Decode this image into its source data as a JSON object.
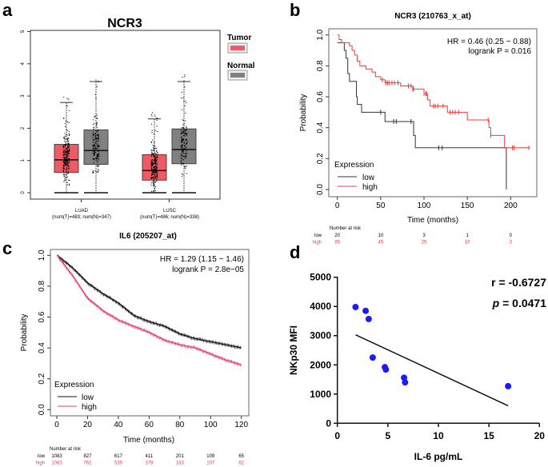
{
  "panel_labels": {
    "a": "a",
    "b": "b",
    "c": "c",
    "d": "d"
  },
  "colors": {
    "tumor": "#f05a64",
    "normal": "#808080",
    "km_low_b": "#333333",
    "km_high_b": "#f03c3c",
    "km_low_c": "#111111",
    "km_high_c": "#e0406e",
    "scatter": "#1a1aff"
  },
  "chart_data": [
    {
      "id": "a",
      "type": "box",
      "title": "NCR3",
      "ylim": [
        0,
        5
      ],
      "yticks": [
        "0",
        "1",
        "2",
        "3",
        "4",
        "5"
      ],
      "legend": [
        {
          "name": "Tumor"
        },
        {
          "name": "Normal"
        }
      ],
      "legend_placement": "right",
      "groups": [
        {
          "label": "LUAD",
          "sublabel": "(num(T)=483; num(N)=347)",
          "tumor": {
            "n": 483,
            "min": 0,
            "q1": 0.63,
            "median": 1.02,
            "q3": 1.5,
            "max": 2.8
          },
          "normal": {
            "n": 347,
            "min": 0,
            "q1": 0.88,
            "median": 1.31,
            "q3": 1.95,
            "max": 3.45
          }
        },
        {
          "label": "LUSC",
          "sublabel": "(num(T)=486; num(N)=338)",
          "tumor": {
            "n": 486,
            "min": 0,
            "q1": 0.39,
            "median": 0.69,
            "q3": 1.18,
            "max": 2.29
          },
          "normal": {
            "n": 338,
            "min": 0,
            "q1": 0.9,
            "median": 1.34,
            "q3": 1.98,
            "max": 3.45
          }
        }
      ]
    },
    {
      "id": "b",
      "type": "line",
      "title": "NCR3 (210763_x_at)",
      "xlabel": "Time (months)",
      "ylabel": "Probability",
      "xlim": [
        0,
        220
      ],
      "ylim": [
        0,
        1
      ],
      "xticks": [
        "0",
        "50",
        "100",
        "150",
        "200"
      ],
      "yticks": [
        "0.0",
        "0.2",
        "0.4",
        "0.6",
        "0.8",
        "1.0"
      ],
      "annotation": [
        "HR = 0.46 (0.25 − 0.88)",
        "logrank P = 0.016"
      ],
      "legend_title": "Expression",
      "legend_placement": "bottom-left",
      "series": [
        {
          "name": "low",
          "steps": [
            [
              0,
              0.95
            ],
            [
              8,
              0.9
            ],
            [
              10,
              0.85
            ],
            [
              12,
              0.75
            ],
            [
              14,
              0.7
            ],
            [
              22,
              0.6
            ],
            [
              23,
              0.55
            ],
            [
              28,
              0.5
            ],
            [
              55,
              0.44
            ],
            [
              88,
              0.35
            ],
            [
              90,
              0.27
            ],
            [
              195,
              0.0
            ]
          ],
          "censored": [
            50,
            65,
            68,
            85,
            117,
            121
          ]
        },
        {
          "name": "high",
          "steps": [
            [
              0,
              1.0
            ],
            [
              2,
              0.97
            ],
            [
              5,
              0.95
            ],
            [
              14,
              0.93
            ],
            [
              17,
              0.9
            ],
            [
              20,
              0.87
            ],
            [
              23,
              0.83
            ],
            [
              26,
              0.8
            ],
            [
              33,
              0.78
            ],
            [
              40,
              0.76
            ],
            [
              44,
              0.73
            ],
            [
              50,
              0.71
            ],
            [
              55,
              0.69
            ],
            [
              73,
              0.67
            ],
            [
              87,
              0.65
            ],
            [
              100,
              0.62
            ],
            [
              104,
              0.58
            ],
            [
              107,
              0.54
            ],
            [
              127,
              0.5
            ],
            [
              150,
              0.45
            ],
            [
              175,
              0.4
            ],
            [
              177,
              0.35
            ],
            [
              193,
              0.27
            ],
            [
              222,
              0.27
            ]
          ],
          "censored": [
            52,
            56,
            58,
            60,
            63,
            66,
            70,
            82,
            85,
            87,
            88,
            100,
            102,
            103,
            111,
            113,
            116,
            122,
            130,
            133,
            136,
            140,
            174,
            177,
            202,
            204,
            221
          ]
        }
      ],
      "risk_table": {
        "title": "Number at risk",
        "times": [
          "0",
          "50",
          "100",
          "150",
          "200"
        ],
        "rows": [
          {
            "name": "low",
            "values": [
              "20",
              "10",
              "3",
              "1",
              "0"
            ]
          },
          {
            "name": "high",
            "values": [
              "65",
              "45",
              "25",
              "10",
              "3"
            ]
          }
        ]
      }
    },
    {
      "id": "c",
      "type": "line",
      "title": "IL6 (205207_at)",
      "xlabel": "Time (months)",
      "ylabel": "Probability",
      "xlim": [
        0,
        120
      ],
      "ylim": [
        0,
        1
      ],
      "xticks": [
        "0",
        "20",
        "40",
        "60",
        "80",
        "100",
        "120"
      ],
      "yticks": [
        "0.0",
        "0.2",
        "0.4",
        "0.6",
        "0.8",
        "1.0"
      ],
      "annotation": [
        "HR = 1.29 (1.15 − 1.46)",
        "logrank P = 2.8e−05"
      ],
      "legend_title": "Expression",
      "legend_placement": "bottom-left",
      "series": [
        {
          "name": "low",
          "points": [
            [
              0,
              1.0
            ],
            [
              10,
              0.92
            ],
            [
              20,
              0.82
            ],
            [
              30,
              0.75
            ],
            [
              40,
              0.69
            ],
            [
              50,
              0.61
            ],
            [
              60,
              0.57
            ],
            [
              70,
              0.54
            ],
            [
              80,
              0.49
            ],
            [
              90,
              0.46
            ],
            [
              100,
              0.44
            ],
            [
              110,
              0.42
            ],
            [
              120,
              0.4
            ]
          ]
        },
        {
          "name": "high",
          "points": [
            [
              0,
              1.0
            ],
            [
              10,
              0.87
            ],
            [
              20,
              0.72
            ],
            [
              30,
              0.64
            ],
            [
              40,
              0.58
            ],
            [
              50,
              0.54
            ],
            [
              60,
              0.5
            ],
            [
              70,
              0.45
            ],
            [
              80,
              0.42
            ],
            [
              90,
              0.4
            ],
            [
              100,
              0.36
            ],
            [
              110,
              0.32
            ],
            [
              120,
              0.29
            ]
          ]
        }
      ],
      "risk_table": {
        "title": "Number at risk",
        "times": [
          "0",
          "20",
          "40",
          "60",
          "80",
          "100",
          "120"
        ],
        "rows": [
          {
            "name": "low",
            "values": [
              "1083",
              "827",
              "617",
              "411",
              "201",
              "109",
              "65"
            ]
          },
          {
            "name": "high",
            "values": [
              "1083",
              "761",
              "539",
              "379",
              "183",
              "107",
              "62"
            ]
          }
        ]
      }
    },
    {
      "id": "d",
      "type": "scatter",
      "xlabel": "IL-6 pg/mL",
      "ylabel": "NKp30 MFI",
      "xlim": [
        0,
        20
      ],
      "ylim": [
        0,
        5000
      ],
      "xticks": [
        "0",
        "5",
        "10",
        "15",
        "20"
      ],
      "yticks": [
        "0",
        "1000",
        "2000",
        "3000",
        "4000",
        "5000"
      ],
      "stats": {
        "r_label": "r = -0.6727",
        "p_prefix": "p",
        "p_value": " = 0.0471"
      },
      "points": [
        [
          1.8,
          3980
        ],
        [
          2.8,
          3850
        ],
        [
          3.1,
          3570
        ],
        [
          3.5,
          2250
        ],
        [
          4.7,
          1920
        ],
        [
          4.8,
          1840
        ],
        [
          6.6,
          1560
        ],
        [
          6.7,
          1400
        ],
        [
          16.9,
          1270
        ]
      ],
      "fit_line": [
        [
          1.8,
          3030
        ],
        [
          16.9,
          600
        ]
      ]
    }
  ]
}
